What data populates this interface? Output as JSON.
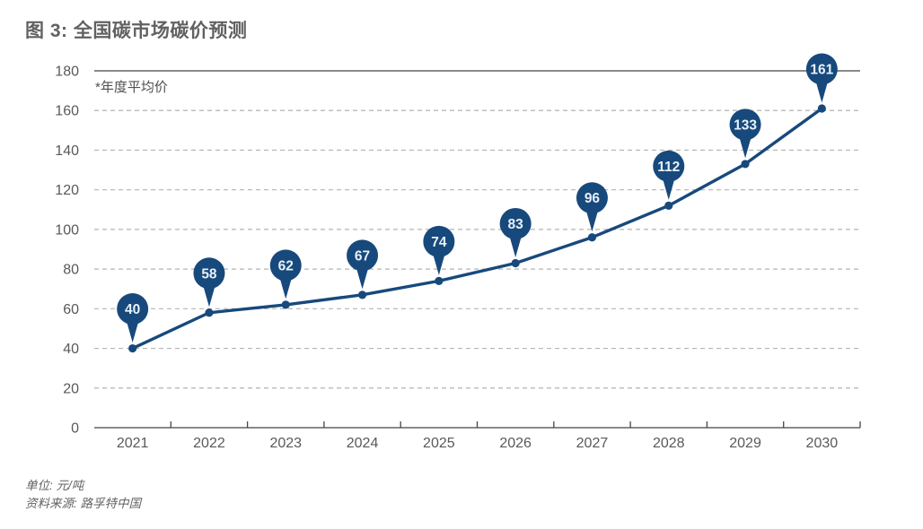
{
  "header": {
    "title": "图 3: 全国碳市场碳价预测"
  },
  "chart_data": {
    "type": "line",
    "title": "图 3: 全国碳市场碳价预测",
    "note": "*年度平均价",
    "categories": [
      "2021",
      "2022",
      "2023",
      "2024",
      "2025",
      "2026",
      "2027",
      "2028",
      "2029",
      "2030"
    ],
    "series": [
      {
        "name": "全国碳市场碳价预测(年度平均价)",
        "values": [
          40,
          58,
          62,
          67,
          74,
          83,
          96,
          112,
          133,
          161
        ]
      }
    ],
    "ylim": [
      0,
      180
    ],
    "ytick_step": 20,
    "ytick_labels": [
      "0",
      "20",
      "40",
      "60",
      "80",
      "100",
      "120",
      "140",
      "160",
      "180"
    ],
    "grid": "horizontal-dashed",
    "legend_position": "none",
    "data_labels": "balloon-above-point",
    "colors": {
      "line": "#17497c",
      "point": "#17497c",
      "bubble": "#17497c",
      "bubble_text": "#e9f1f9",
      "grid": "#b3b3b3",
      "axis": "#454545",
      "tick_text": "#595959"
    }
  },
  "footer": {
    "unit": "单位: 元/吨",
    "source": "资料来源: 路孚特中国"
  }
}
